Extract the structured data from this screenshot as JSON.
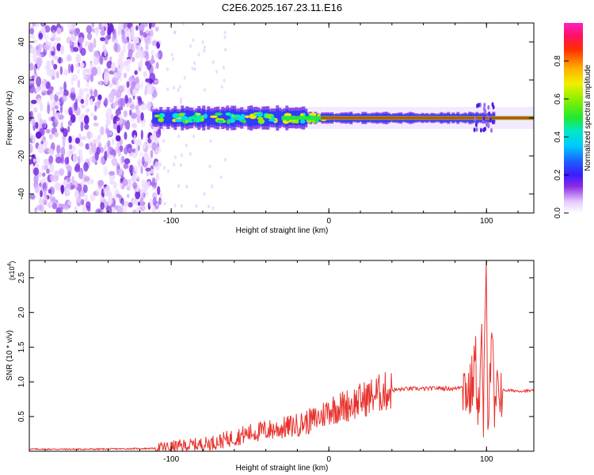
{
  "title": "C2E6.2025.167.23.11.E16",
  "chart_data": [
    {
      "type": "heatmap",
      "xlabel": "Height of straight line (km)",
      "ylabel": "Frequency (Hz)",
      "xlim": [
        -190,
        130
      ],
      "ylim": [
        -50,
        50
      ],
      "xticks": [
        -100,
        0,
        100
      ],
      "yticks": [
        -40,
        -20,
        0,
        20,
        40
      ],
      "colorbar": {
        "label": "Normalized spectral amplitude",
        "range": [
          0,
          1
        ],
        "ticks": [
          "0.0",
          "0.2",
          "0.4",
          "0.6",
          "0.8"
        ]
      },
      "features": {
        "noise_region_x": [
          -190,
          -110
        ],
        "band_center_hz": 0,
        "band_x": [
          -112,
          105
        ]
      }
    },
    {
      "type": "line",
      "xlabel": "Height of straight line (km)",
      "ylabel": "SNR (10 * v/v)",
      "multiplier": "(x10^4)",
      "xlim": [
        -190,
        130
      ],
      "ylim": [
        0,
        2.75
      ],
      "xticks": [
        -100,
        0,
        100
      ],
      "yticks": [
        "0.5",
        "1.0",
        "1.5",
        "2.0",
        "2.5"
      ],
      "series": [
        {
          "color": "#e8322d",
          "x": [
            -190,
            -150,
            -110,
            -100,
            -90,
            -80,
            -70,
            -60,
            -50,
            -40,
            -30,
            -20,
            -10,
            -5,
            0,
            10,
            20,
            30,
            40,
            50,
            60,
            70,
            80,
            85,
            90,
            93,
            95,
            97,
            98,
            100,
            101,
            102,
            104,
            105,
            108,
            110,
            120,
            130
          ],
          "values": [
            0.03,
            0.03,
            0.04,
            0.06,
            0.08,
            0.1,
            0.14,
            0.2,
            0.26,
            0.3,
            0.33,
            0.38,
            0.45,
            0.5,
            0.6,
            0.65,
            0.73,
            0.82,
            0.88,
            0.9,
            0.9,
            0.91,
            0.9,
            0.95,
            0.85,
            1.3,
            0.6,
            1.5,
            0.4,
            2.75,
            0.3,
            1.2,
            1.4,
            0.5,
            0.95,
            0.88,
            0.87,
            0.87
          ]
        }
      ]
    }
  ]
}
